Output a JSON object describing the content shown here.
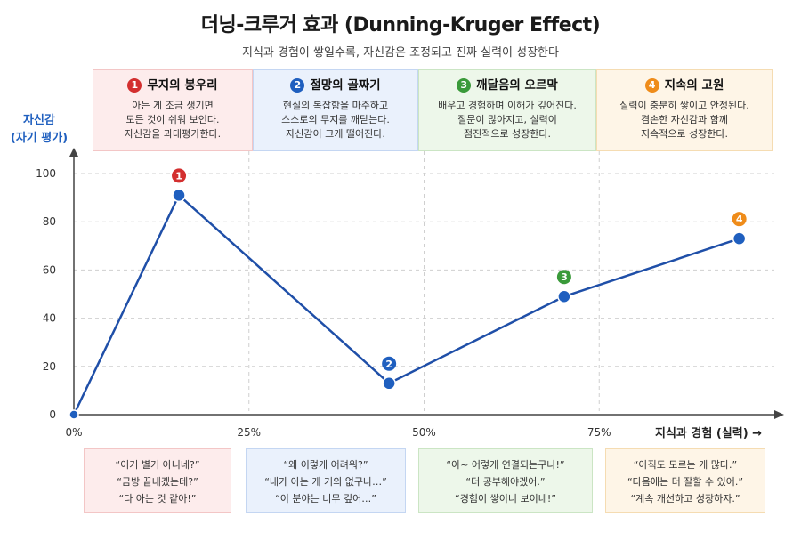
{
  "title": "더닝-크루거 효과 (Dunning-Kruger Effect)",
  "subtitle": "지식과 경험이 쌓일수록, 자신감은 조정되고 진짜 실력이 성장한다",
  "stages": [
    {
      "num": "1",
      "title": "무지의 봉우리",
      "desc": "아는 게 조금 생기면\n모든 것이 쉬워 보인다.\n자신감을 과대평가한다.",
      "color": "#d32f2f",
      "bg": "#fdecec",
      "border": "#f3c6c6"
    },
    {
      "num": "2",
      "title": "절망의 골짜기",
      "desc": "현실의 복잡함을 마주하고\n스스로의 무지를 깨닫는다.\n자신감이 크게 떨어진다.",
      "color": "#1f5fbf",
      "bg": "#eaf1fc",
      "border": "#c4d6f2"
    },
    {
      "num": "3",
      "title": "깨달음의 오르막",
      "desc": "배우고 경험하며 이해가 깊어진다.\n질문이 많아지고, 실력이\n점진적으로 성장한다.",
      "color": "#3a9a3a",
      "bg": "#edf7ea",
      "border": "#cbe5c4"
    },
    {
      "num": "4",
      "title": "지속의 고원",
      "desc": "실력이 충분히 쌓이고 안정된다.\n겸손한 자신감과 함께\n지속적으로 성장한다.",
      "color": "#ef8c1a",
      "bg": "#fef5e7",
      "border": "#f5dcb2"
    }
  ],
  "quotes": [
    "“이거 별거 아니네?”\n“금방 끝내겠는데?”\n“다 아는 것 같아!”",
    "“왜 이렇게 어려워?”\n“내가 아는 게 거의 없구나…”\n“이 분야는 너무 깊어…”",
    "“아~ 어렇게 연결되는구나!”\n“더 공부해야겠어.”\n“경험이 쌓이니 보이네!”",
    "“아직도 모르는 게 많다.”\n“다음에는 더 잘할 수 있어.”\n“계속 개선하고 성장하자.”"
  ],
  "chart_data": {
    "type": "line",
    "x": [
      0,
      15,
      45,
      70,
      95
    ],
    "y": [
      0,
      91,
      13,
      49,
      73
    ],
    "point_labels": [
      "",
      "1",
      "2",
      "3",
      "4"
    ],
    "point_label_colors": [
      "",
      "#d32f2f",
      "#1f5fbf",
      "#3a9a3a",
      "#ef8c1a"
    ],
    "ylabel": "자신감\n(자기 평가)",
    "xlabel": "지식과 경험 (실력) →",
    "yticks": [
      "0",
      "20",
      "40",
      "60",
      "80",
      "100"
    ],
    "ytick_values": [
      0,
      20,
      40,
      60,
      80,
      100
    ],
    "xticks": [
      "0%",
      "25%",
      "50%",
      "75%"
    ],
    "xtick_values": [
      0,
      25,
      50,
      75
    ],
    "xlim": [
      0,
      100
    ],
    "ylim": [
      0,
      100
    ],
    "grid": true,
    "line_color": "#1f4fa8",
    "point_color": "#1f5fbf"
  }
}
